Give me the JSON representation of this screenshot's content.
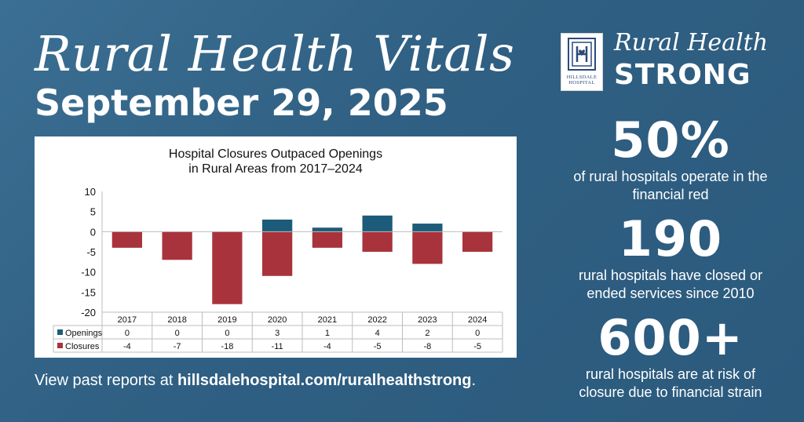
{
  "header": {
    "title": "Rural Health Vitals",
    "date": "September 29, 2025"
  },
  "footer": {
    "prefix": "View past reports at ",
    "link": "hillsdalehospital.com/ruralhealthstrong",
    "suffix": "."
  },
  "brand": {
    "logo_text_line1": "HILLSDALE",
    "logo_text_line2": "HOSPITAL",
    "script": "Rural Health",
    "strong": "STRONG"
  },
  "stats": [
    {
      "value": "50%",
      "description": "of rural hospitals operate in the financial red"
    },
    {
      "value": "190",
      "description": "rural hospitals have closed or ended services since 2010"
    },
    {
      "value": "600+",
      "description": "rural hospitals are at risk of closure due to financial strain"
    }
  ],
  "colors": {
    "openings": "#1d5b7a",
    "closures": "#a9333c",
    "logo": "#2b4a7b"
  },
  "chart_data": {
    "type": "bar",
    "title": "Hospital Closures Outpaced Openings in Rural Areas from 2017–2024",
    "title_lines": [
      "Hospital Closures Outpaced Openings",
      "in Rural Areas from 2017–2024"
    ],
    "categories": [
      "2017",
      "2018",
      "2019",
      "2020",
      "2021",
      "2022",
      "2023",
      "2024"
    ],
    "series": [
      {
        "name": "Openings",
        "values": [
          0,
          0,
          0,
          3,
          1,
          4,
          2,
          0
        ],
        "color": "#1d5b7a"
      },
      {
        "name": "Closures",
        "values": [
          -4,
          -7,
          -18,
          -11,
          -4,
          -5,
          -8,
          -5
        ],
        "color": "#a9333c"
      }
    ],
    "ylim": [
      -20,
      10
    ],
    "yticks": [
      10,
      5,
      0,
      -5,
      -10,
      -15,
      -20
    ],
    "stacked": true,
    "grid": false,
    "legend": "data-table"
  }
}
